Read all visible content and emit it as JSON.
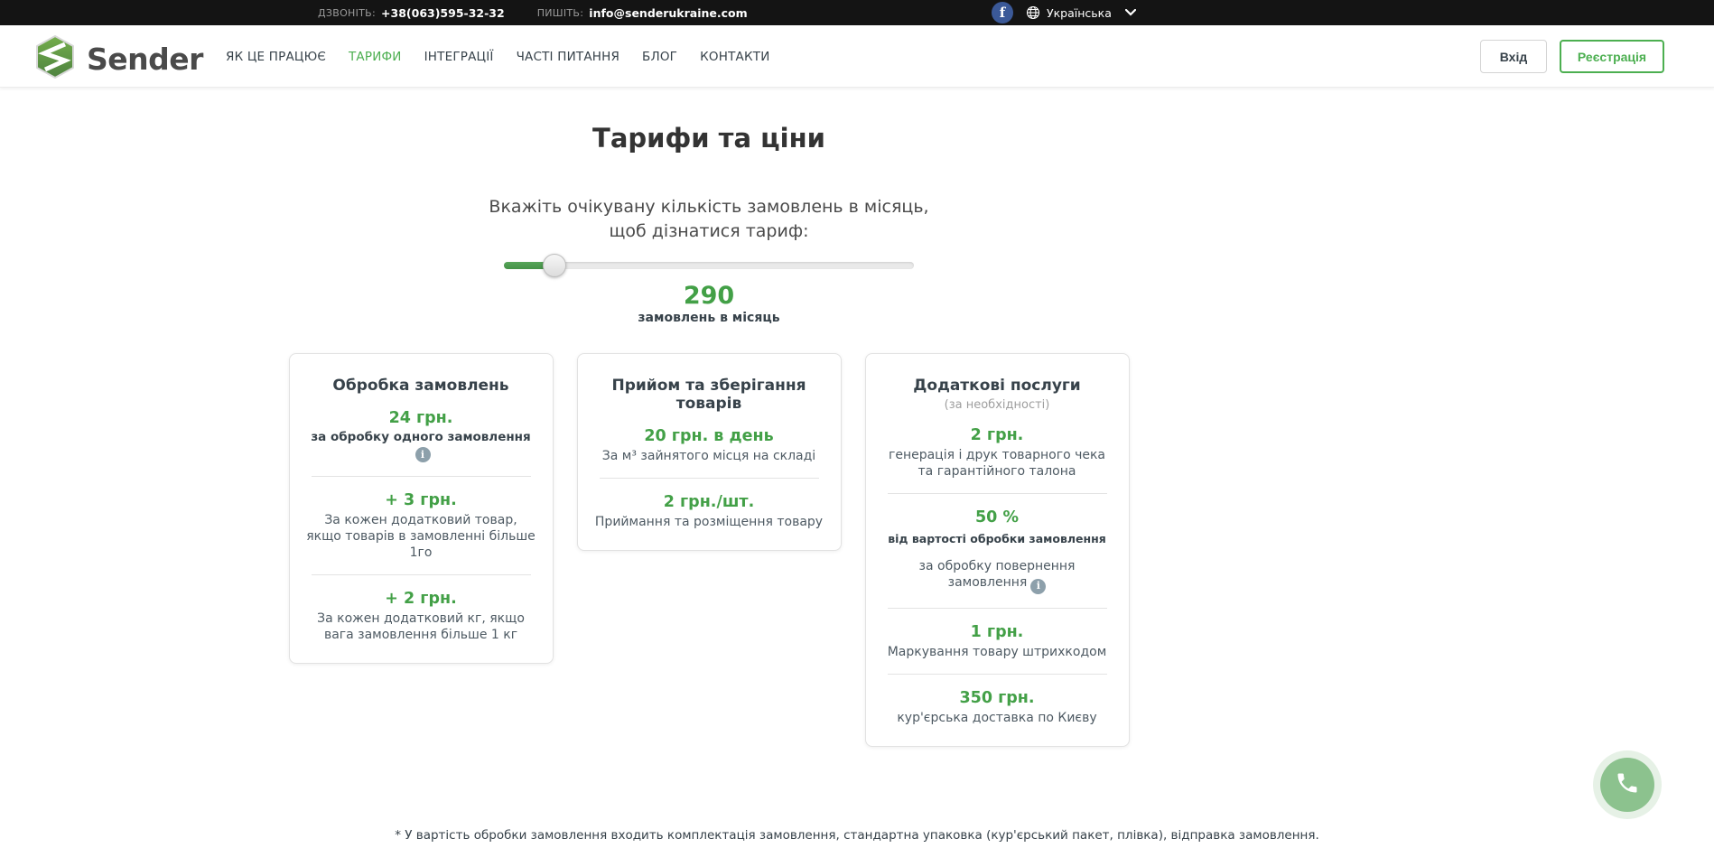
{
  "colors": {
    "accent": "#43a047",
    "facebook": "#3b5998",
    "topbar_bg": "#141414"
  },
  "icons": {
    "facebook_letter": "f",
    "info_letter": "i"
  },
  "topbar": {
    "call_label": "ДЗВОНІТЬ:",
    "phone": "+38(063)595-32-32",
    "write_label": "ПИШІТЬ:",
    "email": "info@senderukraine.com",
    "language": "Українська"
  },
  "header": {
    "brand": "Sender",
    "nav": [
      {
        "label": "ЯК ЦЕ ПРАЦЮЄ"
      },
      {
        "label": "ТАРИФИ"
      },
      {
        "label": "ІНТЕГРАЦІЇ"
      },
      {
        "label": "ЧАСТІ ПИТАННЯ"
      },
      {
        "label": "БЛОГ"
      },
      {
        "label": "КОНТАКТИ"
      }
    ],
    "login_label": "Вхід",
    "register_label": "Реєстрація"
  },
  "main": {
    "title": "Тарифи та ціни",
    "slider": {
      "label_line1": "Вкажіть очікувану кількість замовлень в місяць,",
      "label_line2": "щоб дізнатися тариф:",
      "value": "290",
      "value_caption": "замовлень в місяць",
      "percent_filled": 12.3
    },
    "cards": [
      {
        "title": "Обробка замовлень",
        "items": [
          {
            "price": "24 грн.",
            "note": "за обробку одного замовлення"
          },
          {
            "price": "+ 3 грн.",
            "note": "За кожен додатковий товар, якщо товарів в замовленні більше 1го"
          },
          {
            "price": "+ 2 грн.",
            "note": "За кожен додатковий кг, якщо вага замовлення більше 1 кг"
          }
        ]
      },
      {
        "title": "Прийом та зберігання товарів",
        "items": [
          {
            "price": "20 грн. в день",
            "note": "За м³ зайнятого місця на складі"
          },
          {
            "price": "2 грн./шт.",
            "note": "Приймання та розміщення товару"
          }
        ]
      },
      {
        "title": "Додаткові послуги",
        "subtitle": "(за необхідності)",
        "items": [
          {
            "price": "2 грн.",
            "note": "генерація і друк товарного чека та гарантійного талона"
          },
          {
            "price": "50 %",
            "subnote": "від вартості обробки замовлення",
            "note": "за обробку повернення замовлення"
          },
          {
            "price": "1 грн.",
            "note": "Маркування товару штрихкодом"
          },
          {
            "price": "350 грн.",
            "note": "кур'єрська доставка по Києву"
          }
        ]
      }
    ],
    "footnote": "* У вартість обробки замовлення входить комплектація замовлення, стандартна упаковка (кур'єрський пакет, плівка), відправка замовлення."
  }
}
